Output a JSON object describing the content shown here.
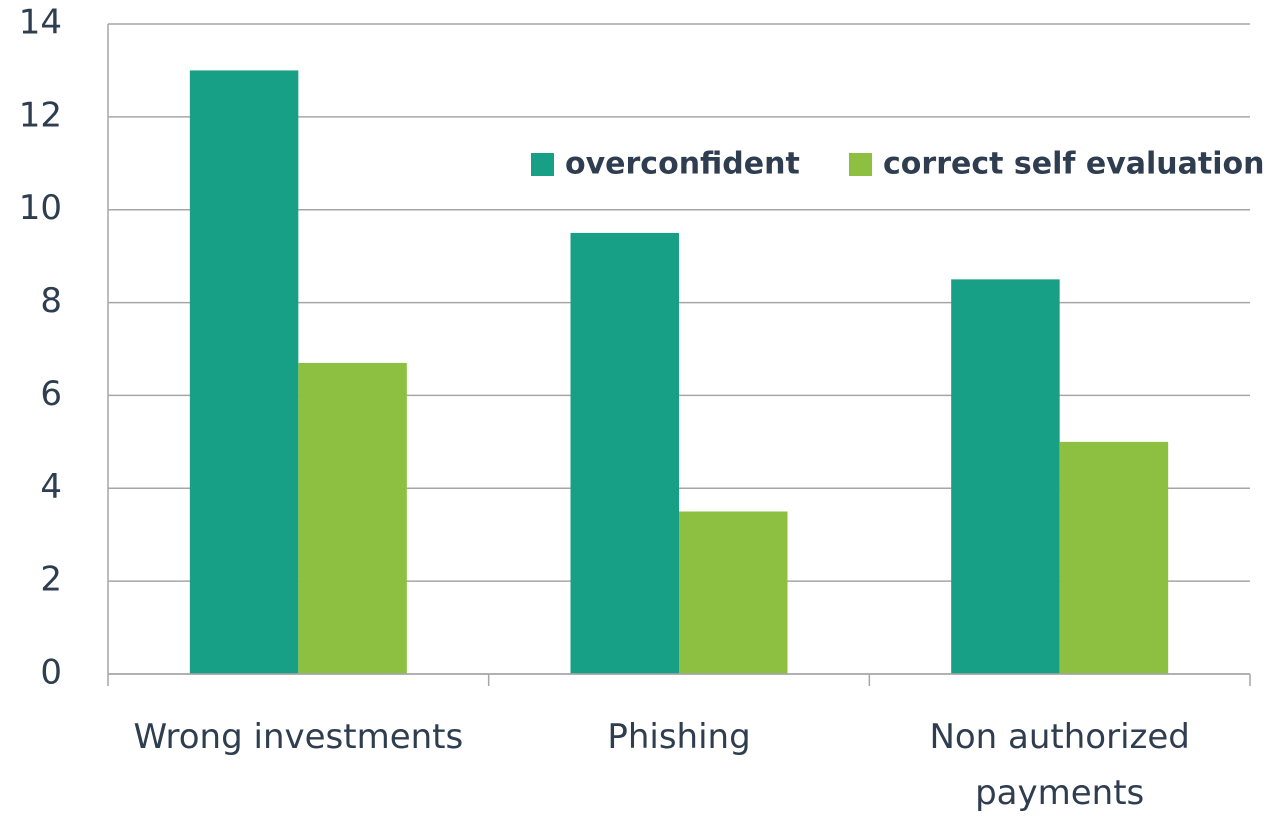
{
  "chart_data": {
    "type": "bar",
    "categories": [
      "Wrong investments",
      "Phishing",
      "Non authorized payments"
    ],
    "series": [
      {
        "name": "overconfident",
        "color": "#17a085",
        "values": [
          13,
          9.5,
          8.5
        ]
      },
      {
        "name": "correct self evaluation",
        "color": "#8dc040",
        "values": [
          6.7,
          3.5,
          5
        ]
      }
    ],
    "ylim": [
      0,
      14
    ],
    "yticks": [
      0,
      2,
      4,
      6,
      8,
      10,
      12,
      14
    ],
    "grid": true,
    "legend": "top-right"
  }
}
